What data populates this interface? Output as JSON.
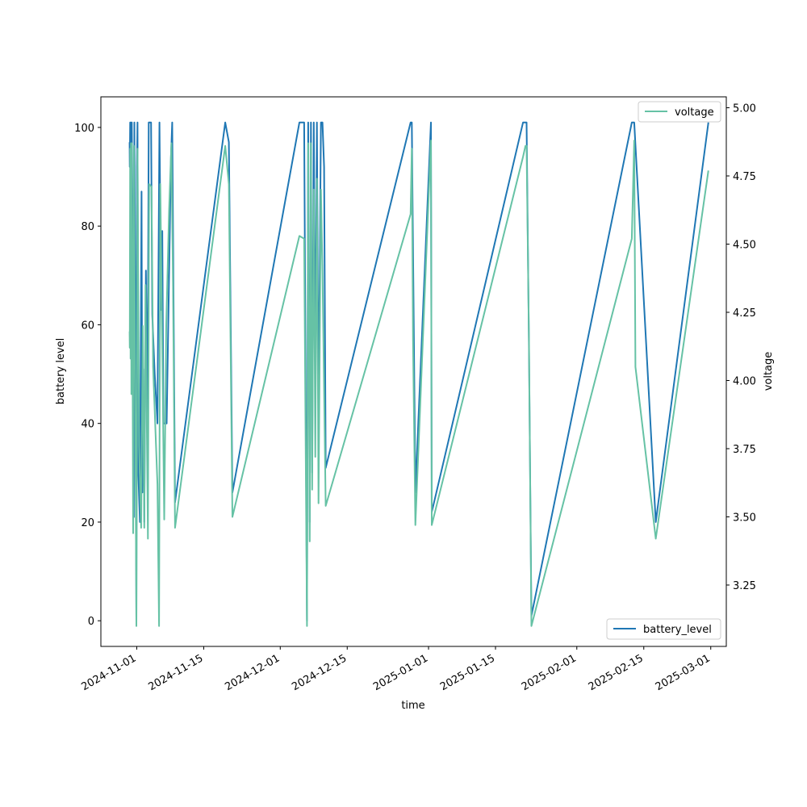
{
  "chart_data": {
    "type": "line",
    "xlabel": "time",
    "ylabel_left": "battery level",
    "ylabel_right": "voltage",
    "x_ticks": [
      "2024-11-01",
      "2024-11-15",
      "2024-12-01",
      "2024-12-15",
      "2025-01-01",
      "2025-01-15",
      "2025-02-01",
      "2025-02-15",
      "2025-03-01"
    ],
    "x_range": [
      "2024-10-24T12:00",
      "2025-03-04T06:00"
    ],
    "y_left_ticks": [
      0,
      20,
      40,
      60,
      80,
      100
    ],
    "y_left_range": [
      -5.2,
      106.2
    ],
    "y_right_ticks": [
      "3.25",
      "3.50",
      "3.75",
      "4.00",
      "4.25",
      "4.50",
      "4.75",
      "5.00"
    ],
    "y_right_range": [
      3.025,
      5.04
    ],
    "grid": false,
    "colors": {
      "battery_level": "#1f77b4",
      "voltage": "#66c2a5"
    },
    "series": [
      {
        "name": "battery_level",
        "axis": "left",
        "legend_position": "lower-right",
        "points": [
          [
            "2024-10-30T12:00",
            97
          ],
          [
            "2024-10-30T13:00",
            92
          ],
          [
            "2024-10-30T15:00",
            101
          ],
          [
            "2024-10-30T17:00",
            96
          ],
          [
            "2024-10-30T19:00",
            101
          ],
          [
            "2024-10-30T21:00",
            93
          ],
          [
            "2024-10-30T23:00",
            101
          ],
          [
            "2024-10-31T02:00",
            86
          ],
          [
            "2024-10-31T05:00",
            60
          ],
          [
            "2024-10-31T09:00",
            21
          ],
          [
            "2024-10-31T12:00",
            101
          ],
          [
            "2024-10-31T16:00",
            70
          ],
          [
            "2024-10-31T22:00",
            0
          ],
          [
            "2024-11-01T01:00",
            92
          ],
          [
            "2024-11-01T04:00",
            101
          ],
          [
            "2024-11-01T08:00",
            30
          ],
          [
            "2024-11-01T16:00",
            20
          ],
          [
            "2024-11-02T00:00",
            87
          ],
          [
            "2024-11-02T04:00",
            26
          ],
          [
            "2024-11-02T08:00",
            51
          ],
          [
            "2024-11-02T14:00",
            20
          ],
          [
            "2024-11-02T22:00",
            71
          ],
          [
            "2024-11-03T06:00",
            40
          ],
          [
            "2024-11-03T12:00",
            101
          ],
          [
            "2024-11-04T00:00",
            101
          ],
          [
            "2024-11-04T06:00",
            62
          ],
          [
            "2024-11-04T18:00",
            50
          ],
          [
            "2024-11-05T08:00",
            40
          ],
          [
            "2024-11-05T18:00",
            101
          ],
          [
            "2024-11-06T02:00",
            63
          ],
          [
            "2024-11-06T08:00",
            79
          ],
          [
            "2024-11-06T14:00",
            40
          ],
          [
            "2024-11-07T06:00",
            40
          ],
          [
            "2024-11-08T04:00",
            94
          ],
          [
            "2024-11-08T10:00",
            101
          ],
          [
            "2024-11-09T00:00",
            24
          ],
          [
            "2024-11-19T12:00",
            101
          ],
          [
            "2024-11-20T06:00",
            97
          ],
          [
            "2024-11-21T00:00",
            26
          ],
          [
            "2024-12-05T00:00",
            101
          ],
          [
            "2024-12-06T00:00",
            101
          ],
          [
            "2024-12-06T14:00",
            0
          ],
          [
            "2024-12-06T20:00",
            101
          ],
          [
            "2024-12-07T04:00",
            20
          ],
          [
            "2024-12-07T10:00",
            101
          ],
          [
            "2024-12-07T16:00",
            30
          ],
          [
            "2024-12-08T00:00",
            101
          ],
          [
            "2024-12-08T08:00",
            48
          ],
          [
            "2024-12-08T16:00",
            101
          ],
          [
            "2024-12-09T00:00",
            40
          ],
          [
            "2024-12-09T12:00",
            101
          ],
          [
            "2024-12-09T20:00",
            101
          ],
          [
            "2024-12-10T04:00",
            92
          ],
          [
            "2024-12-10T12:00",
            31
          ],
          [
            "2024-12-28T06:00",
            101
          ],
          [
            "2024-12-28T12:00",
            101
          ],
          [
            "2024-12-29T06:00",
            26
          ],
          [
            "2025-01-01T12:00",
            101
          ],
          [
            "2025-01-01T16:00",
            22
          ],
          [
            "2025-01-20T18:00",
            101
          ],
          [
            "2025-01-21T12:00",
            101
          ],
          [
            "2025-01-22T00:00",
            55
          ],
          [
            "2025-01-22T12:00",
            1
          ],
          [
            "2025-02-12T12:00",
            101
          ],
          [
            "2025-02-13T00:00",
            101
          ],
          [
            "2025-02-17T12:00",
            20
          ],
          [
            "2025-02-28T12:00",
            101
          ]
        ]
      },
      {
        "name": "voltage",
        "axis": "right",
        "legend_position": "upper-right",
        "points": [
          [
            "2024-10-30T12:00",
            4.18
          ],
          [
            "2024-10-30T13:00",
            4.12
          ],
          [
            "2024-10-30T15:00",
            4.85
          ],
          [
            "2024-10-30T17:00",
            4.08
          ],
          [
            "2024-10-30T19:00",
            4.87
          ],
          [
            "2024-10-30T21:00",
            3.95
          ],
          [
            "2024-10-30T23:00",
            4.87
          ],
          [
            "2024-10-31T02:00",
            4.3
          ],
          [
            "2024-10-31T06:00",
            3.44
          ],
          [
            "2024-10-31T10:00",
            4.86
          ],
          [
            "2024-10-31T16:00",
            4.0
          ],
          [
            "2024-10-31T22:00",
            3.1
          ],
          [
            "2024-11-01T00:00",
            3.58
          ],
          [
            "2024-11-01T04:00",
            4.85
          ],
          [
            "2024-11-01T12:00",
            3.76
          ],
          [
            "2024-11-01T22:00",
            3.46
          ],
          [
            "2024-11-02T06:00",
            4.2
          ],
          [
            "2024-11-02T14:00",
            3.46
          ],
          [
            "2024-11-02T20:00",
            4.35
          ],
          [
            "2024-11-03T08:00",
            3.42
          ],
          [
            "2024-11-03T14:00",
            4.72
          ],
          [
            "2024-11-04T02:00",
            4.71
          ],
          [
            "2024-11-04T10:00",
            4.05
          ],
          [
            "2024-11-05T08:00",
            3.62
          ],
          [
            "2024-11-05T16:00",
            3.1
          ],
          [
            "2024-11-05T22:00",
            4.72
          ],
          [
            "2024-11-06T08:00",
            4.12
          ],
          [
            "2024-11-06T18:00",
            3.49
          ],
          [
            "2024-11-07T04:00",
            4.2
          ],
          [
            "2024-11-07T18:00",
            4.62
          ],
          [
            "2024-11-08T06:00",
            4.87
          ],
          [
            "2024-11-08T14:00",
            4.35
          ],
          [
            "2024-11-09T00:00",
            3.46
          ],
          [
            "2024-11-19T12:00",
            4.86
          ],
          [
            "2024-11-20T06:00",
            4.72
          ],
          [
            "2024-11-21T00:00",
            3.5
          ],
          [
            "2024-12-05T00:00",
            4.53
          ],
          [
            "2024-12-06T00:00",
            4.52
          ],
          [
            "2024-12-06T14:00",
            3.1
          ],
          [
            "2024-12-06T20:00",
            4.87
          ],
          [
            "2024-12-07T04:00",
            3.41
          ],
          [
            "2024-12-07T10:00",
            4.87
          ],
          [
            "2024-12-07T16:00",
            3.6
          ],
          [
            "2024-12-08T00:00",
            4.7
          ],
          [
            "2024-12-08T08:00",
            3.72
          ],
          [
            "2024-12-08T16:00",
            4.74
          ],
          [
            "2024-12-09T00:00",
            3.55
          ],
          [
            "2024-12-09T12:00",
            4.7
          ],
          [
            "2024-12-09T20:00",
            4.4
          ],
          [
            "2024-12-10T12:00",
            3.54
          ],
          [
            "2024-12-28T06:00",
            4.61
          ],
          [
            "2024-12-28T12:00",
            4.85
          ],
          [
            "2024-12-28T18:00",
            4.15
          ],
          [
            "2024-12-29T06:00",
            3.47
          ],
          [
            "2025-01-01T12:00",
            4.88
          ],
          [
            "2025-01-01T16:00",
            3.47
          ],
          [
            "2025-01-20T18:00",
            4.82
          ],
          [
            "2025-01-21T06:00",
            4.86
          ],
          [
            "2025-01-21T12:00",
            4.86
          ],
          [
            "2025-01-22T00:00",
            4.14
          ],
          [
            "2025-01-22T12:00",
            3.1
          ],
          [
            "2025-02-12T12:00",
            4.52
          ],
          [
            "2025-02-13T00:00",
            4.88
          ],
          [
            "2025-02-13T06:00",
            4.05
          ],
          [
            "2025-02-17T12:00",
            3.42
          ],
          [
            "2025-02-28T12:00",
            4.77
          ]
        ]
      }
    ]
  }
}
